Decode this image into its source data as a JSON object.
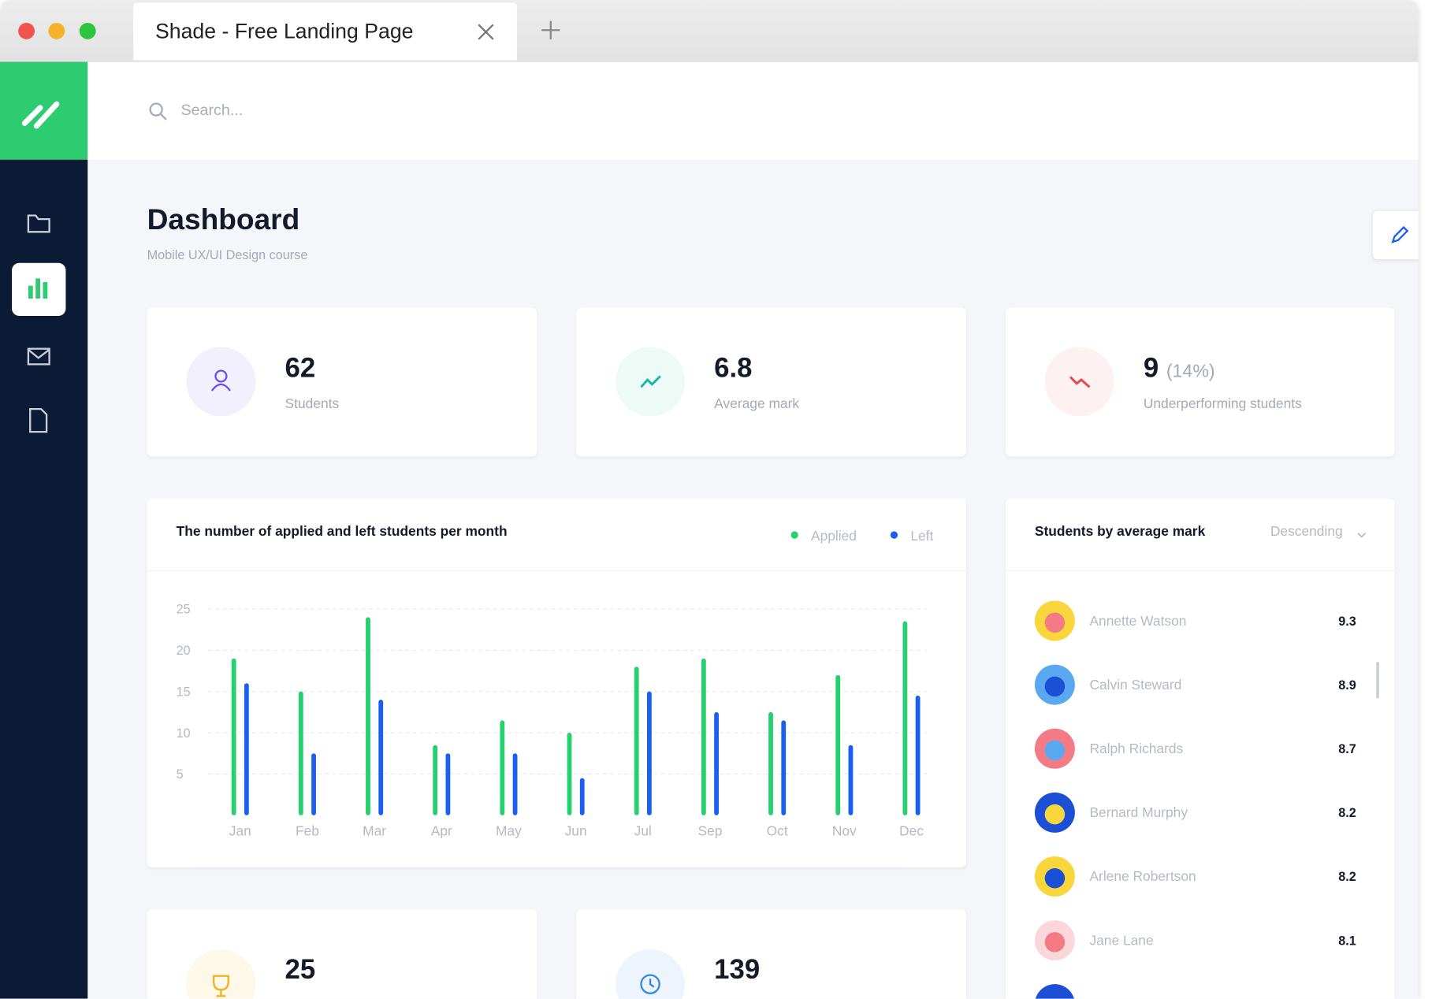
{
  "browser": {
    "tab_title": "Shade - Free Landing Page"
  },
  "search": {
    "placeholder": "Search..."
  },
  "header": {
    "title": "Dashboard",
    "subtitle": "Mobile UX/UI Design course"
  },
  "stats": [
    {
      "value": 62,
      "label": "Students"
    },
    {
      "value": 6.8,
      "label": "Average mark"
    },
    {
      "value": 9,
      "extra": "(14%)",
      "label": "Underperforming students"
    }
  ],
  "chart_data": {
    "type": "bar",
    "title": "The number of applied and left students per month",
    "categories": [
      "Jan",
      "Feb",
      "Mar",
      "Apr",
      "May",
      "Jun",
      "Jul",
      "Sep",
      "Oct",
      "Nov",
      "Dec"
    ],
    "series": [
      {
        "name": "Applied",
        "color": "#25d06f",
        "values": [
          19,
          15,
          24,
          8.5,
          11.5,
          10,
          18,
          19,
          12.5,
          17,
          23.5
        ]
      },
      {
        "name": "Left",
        "color": "#1b5ff0",
        "values": [
          16,
          7.5,
          14,
          7.5,
          7.5,
          4.5,
          15,
          12.5,
          11.5,
          8.5,
          14.5
        ]
      }
    ],
    "ylim": [
      0,
      25
    ],
    "yticks": [
      5,
      10,
      15,
      20,
      25
    ],
    "grid": true
  },
  "ranking": {
    "title": "Students by average mark",
    "sort": "Descending",
    "rows": [
      {
        "name": "Annette Watson",
        "mark": 9.3
      },
      {
        "name": "Calvin Steward",
        "mark": 8.9
      },
      {
        "name": "Ralph Richards",
        "mark": 8.7
      },
      {
        "name": "Bernard Murphy",
        "mark": 8.2
      },
      {
        "name": "Arlene Robertson",
        "mark": 8.2
      },
      {
        "name": "Jane Lane",
        "mark": 8.1
      }
    ]
  },
  "bottom_stats": [
    {
      "value": 25
    },
    {
      "value": 139
    }
  ]
}
